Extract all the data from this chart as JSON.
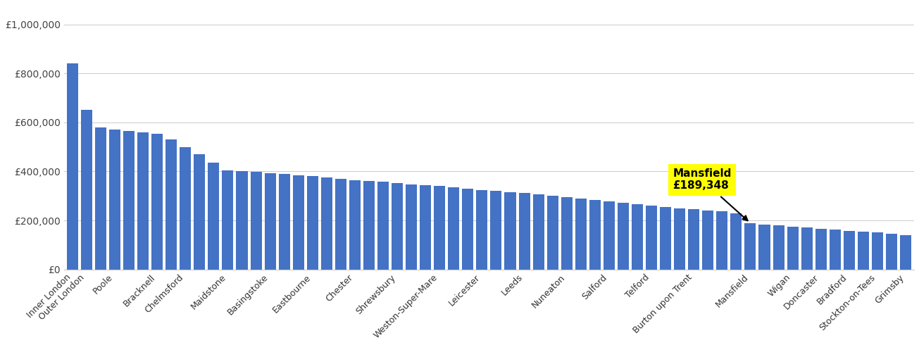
{
  "bar_color": "#4472c4",
  "highlight_box_color": "#ffff00",
  "background_color": "#ffffff",
  "yticks": [
    0,
    200000,
    400000,
    600000,
    800000,
    1000000
  ],
  "ytick_labels": [
    "£0",
    "£200,000",
    "£400,000",
    "£600,000",
    "£800,000",
    "£1,000,000"
  ],
  "ylim": [
    0,
    1080000
  ],
  "highlight_label": "Mansfield",
  "highlight_value": "£189,348",
  "x_labels": [
    "Inner London",
    "Outer London",
    "Poole",
    "Bracknell",
    "Chelmsford",
    "Maidstone",
    "Basingstoke",
    "Eastbourne",
    "Chester",
    "Shrewsbury",
    "Weston-Super-Mare",
    "Leicester",
    "Leeds",
    "Nuneaton",
    "Salford",
    "Telford",
    "Burton upon Trent",
    "Mansfield",
    "Wigan",
    "Doncaster",
    "Bradford",
    "Stockton-on-Tees",
    "Grimsby"
  ],
  "values": [
    840000,
    650000,
    580000,
    570000,
    565000,
    560000,
    555000,
    530000,
    500000,
    470000,
    435000,
    405000,
    400000,
    398000,
    393000,
    390000,
    385000,
    380000,
    375000,
    370000,
    365000,
    362000,
    358000,
    352000,
    348000,
    344000,
    340000,
    336000,
    330000,
    325000,
    320000,
    316000,
    312000,
    306000,
    300000,
    295000,
    290000,
    283000,
    277000,
    272000,
    266000,
    260000,
    255000,
    250000,
    245000,
    240000,
    236000,
    230000,
    189348,
    183000,
    179000,
    174000,
    170000,
    166000,
    162000,
    158000,
    154000,
    150000,
    145000,
    140000
  ],
  "highlight_idx": 48,
  "label_indices": [
    0,
    1,
    3,
    6,
    8,
    11,
    14,
    17,
    20,
    23,
    26,
    29,
    32,
    35,
    38,
    41,
    44,
    48,
    51,
    53,
    55,
    57,
    59
  ]
}
